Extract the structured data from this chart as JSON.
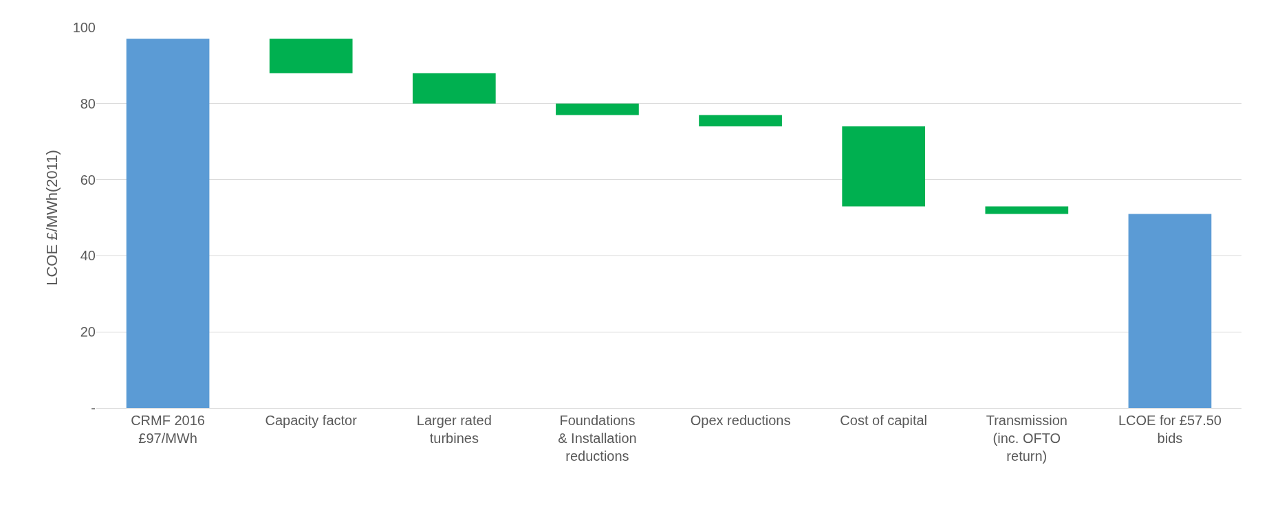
{
  "chart_data": {
    "type": "bar",
    "ylabel": "LCOE £/MWh(2011)",
    "categories": [
      "CRMF 2016\n£97/MWh",
      "Capacity factor",
      "Larger rated\nturbines",
      "Foundations\n& Installation\nreductions",
      "Opex reductions",
      "Cost of capital",
      "Transmission\n(inc. OFTO\nreturn)",
      "LCOE for £57.50\nbids"
    ],
    "values": [
      97,
      -9,
      -8,
      -3,
      -3,
      -21,
      -2,
      51
    ],
    "base": [
      0,
      97,
      88,
      80,
      77,
      74,
      53,
      0
    ],
    "colors": [
      "#5b9bd5",
      "#00b050",
      "#00b050",
      "#00b050",
      "#00b050",
      "#00b050",
      "#00b050",
      "#5b9bd5"
    ],
    "ylim": [
      0,
      100
    ],
    "yticks": [
      {
        "value": 0,
        "label": "-"
      },
      20,
      40,
      60,
      80,
      100
    ],
    "grid": "y"
  }
}
